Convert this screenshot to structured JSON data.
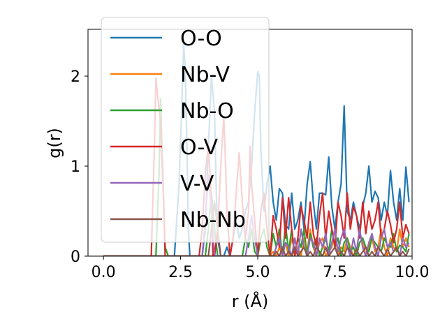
{
  "chart_data": {
    "type": "line",
    "xlabel": "r (Å)",
    "ylabel": "g(r)",
    "xlim": [
      -0.5,
      10.0
    ],
    "ylim": [
      0,
      2.52
    ],
    "xticks": [
      0.0,
      2.5,
      5.0,
      7.5,
      10.0
    ],
    "xtick_labels": [
      "0.0",
      "2.5",
      "5.0",
      "7.5",
      "10.0"
    ],
    "yticks": [
      0,
      1,
      2
    ],
    "ytick_labels": [
      "0",
      "1",
      "2"
    ],
    "grid": false,
    "legend_position": "top-left",
    "series": [
      {
        "name": "O-O",
        "color": "#1f77b4",
        "x": [
          0.0,
          2.3,
          2.45,
          2.55,
          2.6,
          2.65,
          2.7,
          2.75,
          2.8,
          2.9,
          3.0,
          3.1,
          3.2,
          3.3,
          3.4,
          3.5,
          3.6,
          3.65,
          3.7,
          3.8,
          3.9,
          4.0,
          4.1,
          4.2,
          4.3,
          4.4,
          4.5,
          4.6,
          4.7,
          4.8,
          4.9,
          5.0,
          5.05,
          5.1,
          5.2,
          5.3,
          5.4,
          5.5,
          5.6,
          5.7,
          5.8,
          5.9,
          6.0,
          6.1,
          6.2,
          6.3,
          6.4,
          6.5,
          6.6,
          6.7,
          6.8,
          6.9,
          7.0,
          7.1,
          7.2,
          7.3,
          7.4,
          7.5,
          7.6,
          7.7,
          7.8,
          7.9,
          8.0,
          8.1,
          8.2,
          8.3,
          8.4,
          8.5,
          8.6,
          8.7,
          8.8,
          8.9,
          9.0,
          9.1,
          9.2,
          9.3,
          9.4,
          9.5,
          9.6,
          9.7,
          9.8,
          9.9
        ],
        "y": [
          0.0,
          0.0,
          0.8,
          1.8,
          2.35,
          2.1,
          1.3,
          0.3,
          0.0,
          0.0,
          0.0,
          0.0,
          0.0,
          0.3,
          1.2,
          2.0,
          1.6,
          0.8,
          0.2,
          0.0,
          0.0,
          0.1,
          0.0,
          0.2,
          0.4,
          0.2,
          0.3,
          0.5,
          0.6,
          1.0,
          1.6,
          2.05,
          2.0,
          1.2,
          0.5,
          0.8,
          1.0,
          0.6,
          0.4,
          0.75,
          0.7,
          0.35,
          0.3,
          0.7,
          0.3,
          0.4,
          0.6,
          0.3,
          0.8,
          1.05,
          0.6,
          0.3,
          0.7,
          0.7,
          0.68,
          1.1,
          0.55,
          0.3,
          0.6,
          0.8,
          1.67,
          0.5,
          0.4,
          0.6,
          0.45,
          0.3,
          0.55,
          0.7,
          1.0,
          0.6,
          0.72,
          0.65,
          0.4,
          0.6,
          0.45,
          0.95,
          0.6,
          0.4,
          0.75,
          0.4,
          0.99,
          0.6
        ]
      },
      {
        "name": "Nb-V",
        "color": "#ff7f0e",
        "x": [
          0.0,
          5.4,
          5.5,
          5.6,
          5.7,
          5.8,
          5.9,
          6.0,
          6.1,
          6.2,
          6.3,
          6.4,
          6.5,
          6.6,
          6.7,
          6.8,
          6.9,
          7.0,
          7.1,
          7.2,
          7.3,
          7.4,
          7.5,
          7.6,
          7.7,
          7.8,
          7.9,
          8.0,
          8.1,
          8.2,
          8.3,
          8.4,
          8.5,
          8.6,
          8.7,
          8.8,
          8.9,
          9.0,
          9.1,
          9.2,
          9.3,
          9.4,
          9.5,
          9.6,
          9.7,
          9.8,
          9.9
        ],
        "y": [
          0.0,
          0.0,
          0.05,
          0.0,
          0.1,
          0.0,
          0.15,
          0.0,
          0.2,
          0.05,
          0.1,
          0.0,
          0.2,
          0.05,
          0.3,
          0.1,
          0.0,
          0.15,
          0.2,
          0.0,
          0.05,
          0.1,
          0.3,
          0.0,
          0.1,
          0.05,
          0.2,
          0.1,
          0.0,
          0.05,
          0.15,
          0.2,
          0.0,
          0.1,
          0.2,
          0.05,
          0.1,
          0.3,
          0.1,
          0.0,
          0.2,
          0.1,
          0.05,
          0.3,
          0.1,
          0.2,
          0.1
        ]
      },
      {
        "name": "Nb-O",
        "color": "#2ca02c",
        "x": [
          0.0,
          1.7,
          1.8,
          1.85,
          1.9,
          2.0,
          2.1,
          3.3,
          3.4,
          3.5,
          3.6,
          3.7,
          3.8,
          4.0,
          4.5,
          4.6,
          4.7,
          4.8,
          4.9,
          5.0,
          5.1,
          5.2,
          5.3,
          5.4,
          5.5,
          5.6,
          5.7,
          5.8,
          5.9,
          6.0,
          6.1,
          6.2,
          6.3,
          6.4,
          6.5,
          6.6,
          6.7,
          6.8,
          6.9,
          7.0,
          7.1,
          7.2,
          7.3,
          7.4,
          7.5,
          7.6,
          7.7,
          7.8,
          7.9,
          8.0,
          8.1,
          8.2,
          8.3,
          8.4,
          8.5,
          8.6,
          8.7,
          8.8,
          8.9,
          9.0,
          9.1,
          9.2,
          9.3,
          9.4,
          9.5,
          9.6,
          9.7,
          9.8,
          9.9
        ],
        "y": [
          0.0,
          0.0,
          0.9,
          1.75,
          1.2,
          0.1,
          0.0,
          0.0,
          0.3,
          0.7,
          0.3,
          0.0,
          0.0,
          0.0,
          0.0,
          0.2,
          0.1,
          0.3,
          0.05,
          0.0,
          0.2,
          0.3,
          0.1,
          0.0,
          0.25,
          0.1,
          0.3,
          0.0,
          0.35,
          0.05,
          0.3,
          0.0,
          0.2,
          0.1,
          0.3,
          0.0,
          0.25,
          0.1,
          0.2,
          0.0,
          0.1,
          0.2,
          0.05,
          0.3,
          0.1,
          0.2,
          0.0,
          0.15,
          0.2,
          0.05,
          0.1,
          0.0,
          0.15,
          0.2,
          0.1,
          0.05,
          0.2,
          0.15,
          0.1,
          0.05,
          0.2,
          0.12,
          0.1,
          0.25,
          0.05,
          0.12,
          0.1,
          0.05,
          0.25
        ]
      },
      {
        "name": "O-V",
        "color": "#d62728",
        "x": [
          0.0,
          1.55,
          1.65,
          1.7,
          1.75,
          1.85,
          1.95,
          2.0,
          2.1,
          3.1,
          3.2,
          3.3,
          3.4,
          3.5,
          3.55,
          3.6,
          3.7,
          3.8,
          3.9,
          3.95,
          4.0,
          4.1,
          4.2,
          4.3,
          4.4,
          4.5,
          4.6,
          4.7,
          4.75,
          4.8,
          4.9,
          5.0,
          5.1,
          5.2,
          5.3,
          5.4,
          5.5,
          5.6,
          5.7,
          5.8,
          5.9,
          6.0,
          6.1,
          6.2,
          6.3,
          6.4,
          6.5,
          6.6,
          6.7,
          6.8,
          6.9,
          7.0,
          7.1,
          7.2,
          7.3,
          7.4,
          7.5,
          7.6,
          7.7,
          7.8,
          7.9,
          8.0,
          8.1,
          8.2,
          8.3,
          8.4,
          8.5,
          8.6,
          8.7,
          8.8,
          8.9,
          9.0,
          9.1,
          9.2,
          9.3,
          9.4,
          9.5,
          9.6,
          9.7,
          9.8,
          9.9
        ],
        "y": [
          0.0,
          0.0,
          1.2,
          1.98,
          1.8,
          1.5,
          0.6,
          0.0,
          0.0,
          0.0,
          0.3,
          0.9,
          1.25,
          0.6,
          0.0,
          0.0,
          0.3,
          1.0,
          1.55,
          1.1,
          0.5,
          0.0,
          0.2,
          0.7,
          1.15,
          0.6,
          0.2,
          0.5,
          1.22,
          0.8,
          0.4,
          0.0,
          0.5,
          0.7,
          0.3,
          0.0,
          0.45,
          0.3,
          0.1,
          0.65,
          0.2,
          0.65,
          0.3,
          0.0,
          0.2,
          0.55,
          0.4,
          0.2,
          0.6,
          0.25,
          0.1,
          0.45,
          0.7,
          0.2,
          0.5,
          0.3,
          0.1,
          0.6,
          0.45,
          0.2,
          0.7,
          0.3,
          0.55,
          0.45,
          0.2,
          0.6,
          0.25,
          0.5,
          0.3,
          0.4,
          0.6,
          0.2,
          0.3,
          0.5,
          0.35,
          0.15,
          0.3,
          0.6,
          0.2,
          0.35,
          0.25
        ]
      },
      {
        "name": "V-V",
        "color": "#9467bd",
        "x": [
          0.0,
          3.2,
          3.3,
          3.4,
          3.5,
          3.6,
          4.6,
          4.7,
          4.8,
          4.9,
          5.0,
          5.5,
          5.6,
          5.7,
          5.8,
          5.9,
          6.0,
          6.1,
          6.2,
          6.3,
          6.4,
          6.5,
          6.6,
          6.7,
          6.8,
          6.9,
          7.0,
          7.1,
          7.2,
          7.3,
          7.4,
          7.5,
          7.6,
          7.7,
          7.8,
          7.9,
          8.0,
          8.1,
          8.2,
          8.3,
          8.4,
          8.5,
          8.6,
          8.7,
          8.8,
          8.9,
          9.0,
          9.1,
          9.2,
          9.3,
          9.4,
          9.5,
          9.6,
          9.7,
          9.8,
          9.9
        ],
        "y": [
          0.0,
          0.0,
          0.4,
          0.9,
          0.5,
          0.0,
          0.0,
          0.2,
          0.45,
          0.2,
          0.0,
          0.0,
          0.1,
          0.2,
          0.0,
          0.15,
          0.1,
          0.0,
          0.2,
          0.0,
          0.3,
          0.1,
          0.0,
          0.2,
          0.15,
          0.0,
          0.2,
          0.1,
          0.25,
          0.0,
          0.15,
          0.3,
          0.05,
          0.2,
          0.3,
          0.1,
          0.0,
          0.2,
          0.05,
          0.3,
          0.1,
          0.0,
          0.15,
          0.25,
          0.1,
          0.0,
          0.2,
          0.3,
          0.1,
          0.15,
          0.05,
          0.1,
          0.0,
          0.2,
          0.1,
          0.15
        ]
      },
      {
        "name": "Nb-Nb",
        "color": "#8c564b",
        "x": [
          0.0,
          3.4,
          3.5,
          3.6,
          3.7,
          3.8,
          5.5,
          5.6,
          5.7,
          5.8,
          5.9,
          6.0,
          6.1,
          6.2,
          6.3,
          6.4,
          6.5,
          6.6,
          6.7,
          6.8,
          6.9,
          7.0,
          7.1,
          7.2,
          7.3,
          7.4,
          7.5,
          7.6,
          7.7,
          7.8,
          7.9,
          8.0,
          8.1,
          8.2,
          8.3,
          8.4,
          8.5,
          8.6,
          8.7,
          8.8,
          8.9,
          9.0,
          9.1,
          9.2,
          9.3,
          9.4,
          9.5,
          9.6,
          9.7,
          9.8,
          9.9
        ],
        "y": [
          0.0,
          0.0,
          0.3,
          0.6,
          0.3,
          0.0,
          0.0,
          0.05,
          0.0,
          0.1,
          0.0,
          0.05,
          0.0,
          0.1,
          0.0,
          0.05,
          0.1,
          0.0,
          0.05,
          0.0,
          0.1,
          0.05,
          0.0,
          0.1,
          0.0,
          0.05,
          0.1,
          0.0,
          0.05,
          0.0,
          0.1,
          0.05,
          0.0,
          0.08,
          0.0,
          0.05,
          0.1,
          0.0,
          0.05,
          0.0,
          0.1,
          0.05,
          0.0,
          0.08,
          0.0,
          0.05,
          0.1,
          0.0,
          0.05,
          0.0,
          0.08
        ]
      }
    ]
  }
}
